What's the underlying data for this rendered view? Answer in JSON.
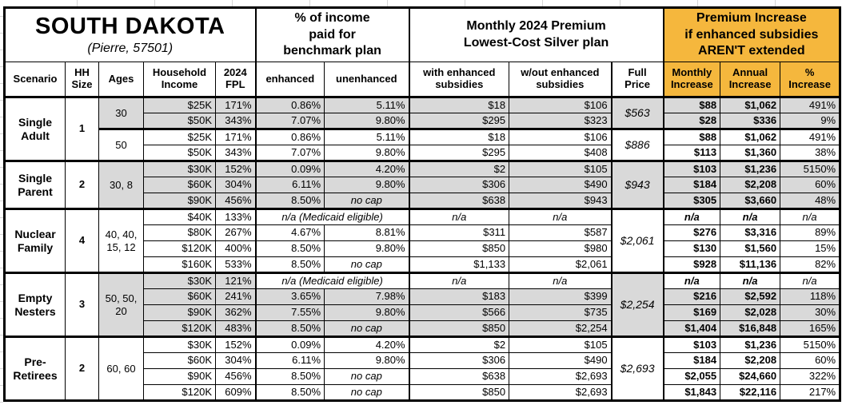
{
  "title": {
    "main": "SOUTH DAKOTA",
    "sub": "(Pierre, 57501)"
  },
  "group_headers": {
    "benchmark": "% of income\npaid for\nbenchmark plan",
    "premium": "Monthly 2024 Premium\nLowest-Cost Silver plan",
    "increase": "Premium Increase\nif enhanced subsidies\nAREN'T extended"
  },
  "columns": [
    {
      "key": "scenario",
      "label": "Scenario"
    },
    {
      "key": "hh_size",
      "label": "HH\nSize"
    },
    {
      "key": "ages",
      "label": "Ages"
    },
    {
      "key": "income",
      "label": "Household\nIncome"
    },
    {
      "key": "fpl",
      "label": "2024\nFPL"
    },
    {
      "key": "enhanced",
      "label": "enhanced"
    },
    {
      "key": "unenhanced",
      "label": "unenhanced"
    },
    {
      "key": "with_sub",
      "label": "with enhanced\nsubsidies"
    },
    {
      "key": "wout_sub",
      "label": "w/out enhanced\nsubsidies"
    },
    {
      "key": "full_price",
      "label": "Full\nPrice"
    },
    {
      "key": "monthly",
      "label": "Monthly\nIncrease"
    },
    {
      "key": "annual",
      "label": "Annual\nIncrease"
    },
    {
      "key": "pct",
      "label": "%\nIncrease"
    }
  ],
  "medicaid_note": "n/a (Medicaid eligible)",
  "na": "n/a",
  "no_cap": "no cap",
  "colors": {
    "accent_orange": "#F5B73D",
    "row_shade": "#D9D9D9",
    "border": "#000000",
    "text": "#000000"
  },
  "sections": [
    {
      "scenario": "Single Adult",
      "hh_size": "1",
      "groups": [
        {
          "ages": "30",
          "shaded": true,
          "full_price": "$563",
          "rows": [
            {
              "income": "$25K",
              "fpl": "171%",
              "enhanced": "0.86%",
              "unenhanced": "5.11%",
              "with_sub": "$18",
              "wout_sub": "$106",
              "monthly": "$88",
              "annual": "$1,062",
              "pct": "491%"
            },
            {
              "income": "$50K",
              "fpl": "343%",
              "enhanced": "7.07%",
              "unenhanced": "9.80%",
              "with_sub": "$295",
              "wout_sub": "$323",
              "monthly": "$28",
              "annual": "$336",
              "pct": "9%"
            }
          ]
        },
        {
          "ages": "50",
          "shaded": false,
          "full_price": "$886",
          "rows": [
            {
              "income": "$25K",
              "fpl": "171%",
              "enhanced": "0.86%",
              "unenhanced": "5.11%",
              "with_sub": "$18",
              "wout_sub": "$106",
              "monthly": "$88",
              "annual": "$1,062",
              "pct": "491%"
            },
            {
              "income": "$50K",
              "fpl": "343%",
              "enhanced": "7.07%",
              "unenhanced": "9.80%",
              "with_sub": "$295",
              "wout_sub": "$408",
              "monthly": "$113",
              "annual": "$1,360",
              "pct": "38%"
            }
          ]
        }
      ]
    },
    {
      "scenario": "Single Parent",
      "hh_size": "2",
      "groups": [
        {
          "ages": "30, 8",
          "shaded": true,
          "full_price": "$943",
          "rows": [
            {
              "income": "$30K",
              "fpl": "152%",
              "enhanced": "0.09%",
              "unenhanced": "4.20%",
              "with_sub": "$2",
              "wout_sub": "$105",
              "monthly": "$103",
              "annual": "$1,236",
              "pct": "5150%"
            },
            {
              "income": "$60K",
              "fpl": "304%",
              "enhanced": "6.11%",
              "unenhanced": "9.80%",
              "with_sub": "$306",
              "wout_sub": "$490",
              "monthly": "$184",
              "annual": "$2,208",
              "pct": "60%"
            },
            {
              "income": "$90K",
              "fpl": "456%",
              "enhanced": "8.50%",
              "unenhanced": "no cap",
              "with_sub": "$638",
              "wout_sub": "$943",
              "monthly": "$305",
              "annual": "$3,660",
              "pct": "48%"
            }
          ]
        }
      ]
    },
    {
      "scenario": "Nuclear Family",
      "hh_size": "4",
      "groups": [
        {
          "ages": "40, 40, 15, 12",
          "shaded": false,
          "full_price": "$2,061",
          "rows": [
            {
              "income": "$40K",
              "fpl": "133%",
              "medicaid": true
            },
            {
              "income": "$80K",
              "fpl": "267%",
              "enhanced": "4.67%",
              "unenhanced": "8.81%",
              "with_sub": "$311",
              "wout_sub": "$587",
              "monthly": "$276",
              "annual": "$3,316",
              "pct": "89%"
            },
            {
              "income": "$120K",
              "fpl": "400%",
              "enhanced": "8.50%",
              "unenhanced": "9.80%",
              "with_sub": "$850",
              "wout_sub": "$980",
              "monthly": "$130",
              "annual": "$1,560",
              "pct": "15%"
            },
            {
              "income": "$160K",
              "fpl": "533%",
              "enhanced": "8.50%",
              "unenhanced": "no cap",
              "with_sub": "$1,133",
              "wout_sub": "$2,061",
              "monthly": "$928",
              "annual": "$11,136",
              "pct": "82%"
            }
          ]
        }
      ]
    },
    {
      "scenario": "Empty Nesters",
      "hh_size": "3",
      "groups": [
        {
          "ages": "50, 50, 20",
          "shaded": true,
          "full_price": "$2,254",
          "rows": [
            {
              "income": "$30K",
              "fpl": "121%",
              "medicaid": true
            },
            {
              "income": "$60K",
              "fpl": "241%",
              "enhanced": "3.65%",
              "unenhanced": "7.98%",
              "with_sub": "$183",
              "wout_sub": "$399",
              "monthly": "$216",
              "annual": "$2,592",
              "pct": "118%"
            },
            {
              "income": "$90K",
              "fpl": "362%",
              "enhanced": "7.55%",
              "unenhanced": "9.80%",
              "with_sub": "$566",
              "wout_sub": "$735",
              "monthly": "$169",
              "annual": "$2,028",
              "pct": "30%"
            },
            {
              "income": "$120K",
              "fpl": "483%",
              "enhanced": "8.50%",
              "unenhanced": "no cap",
              "with_sub": "$850",
              "wout_sub": "$2,254",
              "monthly": "$1,404",
              "annual": "$16,848",
              "pct": "165%"
            }
          ]
        }
      ]
    },
    {
      "scenario": "Pre-Retirees",
      "hh_size": "2",
      "groups": [
        {
          "ages": "60, 60",
          "shaded": false,
          "full_price": "$2,693",
          "rows": [
            {
              "income": "$30K",
              "fpl": "152%",
              "enhanced": "0.09%",
              "unenhanced": "4.20%",
              "with_sub": "$2",
              "wout_sub": "$105",
              "monthly": "$103",
              "annual": "$1,236",
              "pct": "5150%"
            },
            {
              "income": "$60K",
              "fpl": "304%",
              "enhanced": "6.11%",
              "unenhanced": "9.80%",
              "with_sub": "$306",
              "wout_sub": "$490",
              "monthly": "$184",
              "annual": "$2,208",
              "pct": "60%"
            },
            {
              "income": "$90K",
              "fpl": "456%",
              "enhanced": "8.50%",
              "unenhanced": "no cap",
              "with_sub": "$638",
              "wout_sub": "$2,693",
              "monthly": "$2,055",
              "annual": "$24,660",
              "pct": "322%"
            },
            {
              "income": "$120K",
              "fpl": "609%",
              "enhanced": "8.50%",
              "unenhanced": "no cap",
              "with_sub": "$850",
              "wout_sub": "$2,693",
              "monthly": "$1,843",
              "annual": "$22,116",
              "pct": "217%"
            }
          ]
        }
      ]
    }
  ]
}
